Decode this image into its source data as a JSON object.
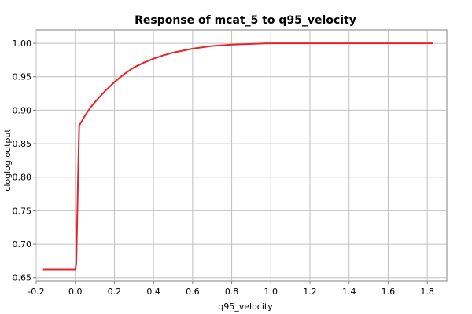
{
  "chart_data": {
    "type": "line",
    "title": "Response of mcat_5 to q95_velocity",
    "xlabel": "q95_velocity",
    "ylabel": "cloglog output",
    "xlim": [
      -0.2,
      1.9
    ],
    "ylim": [
      0.645,
      1.02
    ],
    "x_ticks": [
      -0.2,
      0.0,
      0.2,
      0.4,
      0.6,
      0.8,
      1.0,
      1.2,
      1.4,
      1.6,
      1.8
    ],
    "x_tick_labels": [
      "-0.2",
      "0.0",
      "0.2",
      "0.4",
      "0.6",
      "0.8",
      "1.0",
      "1.2",
      "1.4",
      "1.6",
      "1.8"
    ],
    "y_ticks": [
      0.65,
      0.7,
      0.75,
      0.8,
      0.85,
      0.9,
      0.95,
      1.0
    ],
    "y_tick_labels": [
      "0.65",
      "0.70",
      "0.75",
      "0.80",
      "0.85",
      "0.90",
      "0.95",
      "1.00"
    ],
    "grid": true,
    "series": [
      {
        "color": "#e8232a",
        "x": [
          -0.165,
          -0.1,
          -0.05,
          0.0,
          0.005,
          0.01,
          0.015,
          0.02,
          0.03,
          0.05,
          0.08,
          0.1,
          0.15,
          0.2,
          0.25,
          0.3,
          0.35,
          0.4,
          0.45,
          0.5,
          0.6,
          0.7,
          0.8,
          0.9,
          0.98,
          1.2,
          1.5,
          1.83
        ],
        "y": [
          0.662,
          0.662,
          0.662,
          0.662,
          0.672,
          0.74,
          0.81,
          0.877,
          0.882,
          0.892,
          0.905,
          0.912,
          0.928,
          0.942,
          0.954,
          0.964,
          0.971,
          0.977,
          0.982,
          0.986,
          0.992,
          0.996,
          0.998,
          0.999,
          1.0,
          1.0,
          1.0,
          1.0
        ]
      }
    ]
  }
}
